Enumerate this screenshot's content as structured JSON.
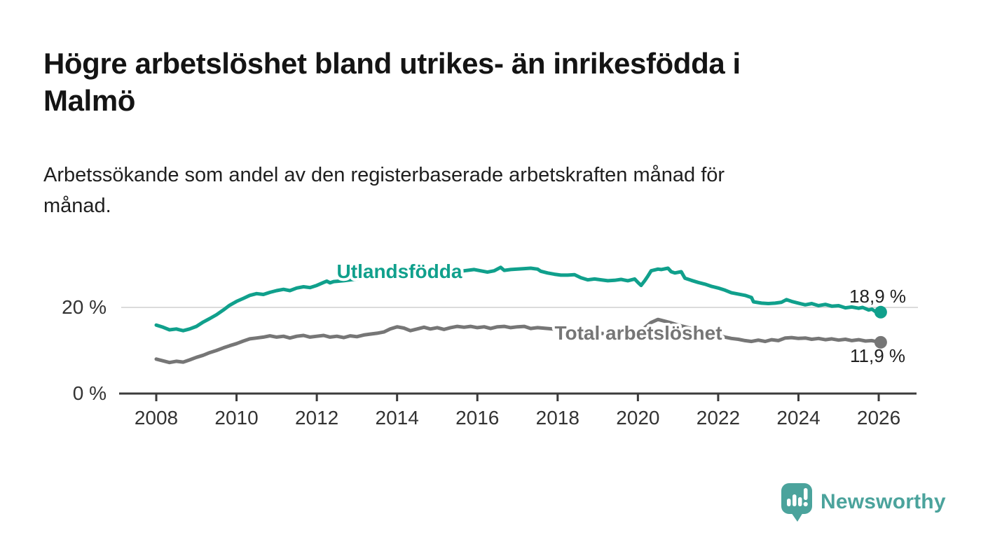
{
  "header": {
    "title_lines": [
      "Högre arbetslöshet bland utrikes- än inrikesfödda i",
      "Malmö"
    ],
    "subtitle_lines": [
      "Arbetssökande som andel av den registerbaserade arbetskraften månad för",
      "månad."
    ]
  },
  "chart_data": {
    "type": "line",
    "unit": "%",
    "grid": "single horizontal gridline at 20%",
    "legend_position": "inline-series-labels",
    "x_axis": {
      "min": 2008,
      "max": 2026.1,
      "ticks": [
        2008,
        2010,
        2012,
        2014,
        2016,
        2018,
        2020,
        2022,
        2024,
        2026
      ]
    },
    "y_axis": {
      "min": 0,
      "max": 30,
      "ticks": [
        {
          "value": 0,
          "label": "0 %"
        },
        {
          "value": 20,
          "label": "20 %"
        }
      ],
      "gridline_values": [
        20
      ]
    },
    "series": [
      {
        "name": "Utlandsfödda",
        "color": "#10A08C",
        "end_value": 18.9,
        "end_label": "18,9 %",
        "points": [
          [
            2008.0,
            15.9
          ],
          [
            2008.17,
            15.4
          ],
          [
            2008.33,
            14.8
          ],
          [
            2008.5,
            15.0
          ],
          [
            2008.67,
            14.6
          ],
          [
            2008.83,
            15.0
          ],
          [
            2009.0,
            15.6
          ],
          [
            2009.17,
            16.6
          ],
          [
            2009.33,
            17.4
          ],
          [
            2009.5,
            18.3
          ],
          [
            2009.67,
            19.4
          ],
          [
            2009.83,
            20.5
          ],
          [
            2010.0,
            21.4
          ],
          [
            2010.17,
            22.1
          ],
          [
            2010.33,
            22.8
          ],
          [
            2010.5,
            23.2
          ],
          [
            2010.67,
            23.0
          ],
          [
            2010.83,
            23.5
          ],
          [
            2011.0,
            23.9
          ],
          [
            2011.17,
            24.2
          ],
          [
            2011.33,
            23.9
          ],
          [
            2011.5,
            24.5
          ],
          [
            2011.67,
            24.8
          ],
          [
            2011.83,
            24.6
          ],
          [
            2012.0,
            25.1
          ],
          [
            2012.17,
            25.8
          ],
          [
            2012.25,
            26.1
          ],
          [
            2012.33,
            25.7
          ],
          [
            2012.42,
            26.0
          ],
          [
            2012.67,
            26.2
          ],
          [
            2012.92,
            26.5
          ],
          [
            2013.17,
            26.8
          ],
          [
            2013.42,
            27.0
          ],
          [
            2013.67,
            27.2
          ],
          [
            2013.92,
            27.4
          ],
          [
            2014.17,
            27.6
          ],
          [
            2014.42,
            27.8
          ],
          [
            2014.67,
            27.9
          ],
          [
            2014.92,
            28.1
          ],
          [
            2015.17,
            28.3
          ],
          [
            2015.42,
            28.4
          ],
          [
            2015.67,
            28.5
          ],
          [
            2015.92,
            28.8
          ],
          [
            2016.08,
            28.5
          ],
          [
            2016.25,
            28.2
          ],
          [
            2016.42,
            28.5
          ],
          [
            2016.58,
            29.3
          ],
          [
            2016.67,
            28.6
          ],
          [
            2016.83,
            28.8
          ],
          [
            2017.0,
            28.9
          ],
          [
            2017.17,
            29.0
          ],
          [
            2017.33,
            29.1
          ],
          [
            2017.5,
            28.9
          ],
          [
            2017.58,
            28.4
          ],
          [
            2017.75,
            28.0
          ],
          [
            2017.92,
            27.7
          ],
          [
            2018.08,
            27.5
          ],
          [
            2018.25,
            27.5
          ],
          [
            2018.42,
            27.6
          ],
          [
            2018.58,
            26.9
          ],
          [
            2018.75,
            26.4
          ],
          [
            2018.92,
            26.6
          ],
          [
            2019.08,
            26.4
          ],
          [
            2019.25,
            26.2
          ],
          [
            2019.42,
            26.3
          ],
          [
            2019.58,
            26.5
          ],
          [
            2019.75,
            26.2
          ],
          [
            2019.92,
            26.6
          ],
          [
            2020.0,
            25.8
          ],
          [
            2020.08,
            25.1
          ],
          [
            2020.17,
            26.2
          ],
          [
            2020.25,
            27.3
          ],
          [
            2020.33,
            28.5
          ],
          [
            2020.5,
            28.9
          ],
          [
            2020.58,
            28.8
          ],
          [
            2020.75,
            29.1
          ],
          [
            2020.83,
            28.3
          ],
          [
            2020.92,
            28.0
          ],
          [
            2021.08,
            28.3
          ],
          [
            2021.17,
            26.8
          ],
          [
            2021.33,
            26.3
          ],
          [
            2021.5,
            25.8
          ],
          [
            2021.67,
            25.4
          ],
          [
            2021.83,
            24.9
          ],
          [
            2022.0,
            24.5
          ],
          [
            2022.17,
            24.0
          ],
          [
            2022.33,
            23.4
          ],
          [
            2022.5,
            23.1
          ],
          [
            2022.67,
            22.8
          ],
          [
            2022.83,
            22.3
          ],
          [
            2022.88,
            21.3
          ],
          [
            2023.08,
            21.0
          ],
          [
            2023.25,
            20.9
          ],
          [
            2023.42,
            21.0
          ],
          [
            2023.58,
            21.2
          ],
          [
            2023.7,
            21.8
          ],
          [
            2023.83,
            21.4
          ],
          [
            2024.0,
            21.0
          ],
          [
            2024.17,
            20.6
          ],
          [
            2024.33,
            20.9
          ],
          [
            2024.5,
            20.4
          ],
          [
            2024.67,
            20.7
          ],
          [
            2024.83,
            20.3
          ],
          [
            2025.0,
            20.4
          ],
          [
            2025.17,
            19.9
          ],
          [
            2025.33,
            20.1
          ],
          [
            2025.5,
            19.8
          ],
          [
            2025.6,
            20.0
          ],
          [
            2025.75,
            19.4
          ],
          [
            2025.83,
            19.6
          ],
          [
            2025.92,
            19.0
          ],
          [
            2026.05,
            18.9
          ]
        ]
      },
      {
        "name": "Total arbetslöshet",
        "color": "#767676",
        "end_value": 11.9,
        "end_label": "11,9 %",
        "points": [
          [
            2008.0,
            8.0
          ],
          [
            2008.17,
            7.6
          ],
          [
            2008.33,
            7.2
          ],
          [
            2008.5,
            7.5
          ],
          [
            2008.67,
            7.3
          ],
          [
            2008.83,
            7.8
          ],
          [
            2009.0,
            8.4
          ],
          [
            2009.17,
            8.9
          ],
          [
            2009.33,
            9.5
          ],
          [
            2009.5,
            10.0
          ],
          [
            2009.67,
            10.6
          ],
          [
            2009.83,
            11.1
          ],
          [
            2010.0,
            11.6
          ],
          [
            2010.17,
            12.2
          ],
          [
            2010.33,
            12.7
          ],
          [
            2010.5,
            12.9
          ],
          [
            2010.67,
            13.1
          ],
          [
            2010.83,
            13.4
          ],
          [
            2011.0,
            13.1
          ],
          [
            2011.17,
            13.3
          ],
          [
            2011.33,
            12.9
          ],
          [
            2011.5,
            13.3
          ],
          [
            2011.67,
            13.5
          ],
          [
            2011.83,
            13.1
          ],
          [
            2012.0,
            13.3
          ],
          [
            2012.17,
            13.5
          ],
          [
            2012.33,
            13.1
          ],
          [
            2012.5,
            13.3
          ],
          [
            2012.67,
            13.0
          ],
          [
            2012.83,
            13.4
          ],
          [
            2013.0,
            13.2
          ],
          [
            2013.17,
            13.6
          ],
          [
            2013.33,
            13.8
          ],
          [
            2013.5,
            14.0
          ],
          [
            2013.67,
            14.3
          ],
          [
            2013.83,
            15.0
          ],
          [
            2014.0,
            15.5
          ],
          [
            2014.17,
            15.2
          ],
          [
            2014.33,
            14.6
          ],
          [
            2014.5,
            15.0
          ],
          [
            2014.67,
            15.4
          ],
          [
            2014.83,
            15.0
          ],
          [
            2015.0,
            15.3
          ],
          [
            2015.17,
            14.9
          ],
          [
            2015.33,
            15.3
          ],
          [
            2015.5,
            15.6
          ],
          [
            2015.67,
            15.4
          ],
          [
            2015.83,
            15.6
          ],
          [
            2016.0,
            15.3
          ],
          [
            2016.17,
            15.5
          ],
          [
            2016.33,
            15.1
          ],
          [
            2016.5,
            15.5
          ],
          [
            2016.67,
            15.6
          ],
          [
            2016.83,
            15.3
          ],
          [
            2017.0,
            15.5
          ],
          [
            2017.17,
            15.6
          ],
          [
            2017.33,
            15.1
          ],
          [
            2017.5,
            15.3
          ],
          [
            2017.75,
            15.1
          ],
          [
            2018.0,
            14.9
          ],
          [
            2018.25,
            14.6
          ],
          [
            2018.5,
            14.4
          ],
          [
            2018.75,
            14.2
          ],
          [
            2019.0,
            14.0
          ],
          [
            2019.25,
            13.9
          ],
          [
            2019.5,
            13.8
          ],
          [
            2019.75,
            13.9
          ],
          [
            2020.0,
            14.1
          ],
          [
            2020.17,
            15.3
          ],
          [
            2020.33,
            16.5
          ],
          [
            2020.5,
            17.2
          ],
          [
            2020.67,
            16.8
          ],
          [
            2020.83,
            16.4
          ],
          [
            2021.0,
            15.9
          ],
          [
            2021.25,
            15.3
          ],
          [
            2021.5,
            14.6
          ],
          [
            2021.75,
            14.0
          ],
          [
            2022.0,
            13.5
          ],
          [
            2022.17,
            13.1
          ],
          [
            2022.33,
            12.8
          ],
          [
            2022.5,
            12.6
          ],
          [
            2022.67,
            12.3
          ],
          [
            2022.83,
            12.1
          ],
          [
            2023.0,
            12.4
          ],
          [
            2023.17,
            12.1
          ],
          [
            2023.33,
            12.5
          ],
          [
            2023.5,
            12.3
          ],
          [
            2023.67,
            12.9
          ],
          [
            2023.83,
            13.0
          ],
          [
            2024.0,
            12.8
          ],
          [
            2024.17,
            12.9
          ],
          [
            2024.33,
            12.6
          ],
          [
            2024.5,
            12.8
          ],
          [
            2024.67,
            12.5
          ],
          [
            2024.83,
            12.7
          ],
          [
            2025.0,
            12.4
          ],
          [
            2025.17,
            12.6
          ],
          [
            2025.33,
            12.3
          ],
          [
            2025.5,
            12.5
          ],
          [
            2025.67,
            12.2
          ],
          [
            2025.83,
            12.3
          ],
          [
            2025.92,
            12.1
          ],
          [
            2026.05,
            11.9
          ]
        ]
      }
    ]
  },
  "footer": {
    "brand": "Newsworthy",
    "logo_icon": "bar-chart-speech-bubble"
  },
  "colors": {
    "accent_teal": "#10A08C",
    "series_gray": "#767676",
    "logo_teal": "#4BA39C",
    "gridline": "#DBDBDB",
    "axis": "#3B3B3B",
    "tick_text": "#333333",
    "value_text": "#1F1F1F",
    "title_text": "#141414"
  }
}
